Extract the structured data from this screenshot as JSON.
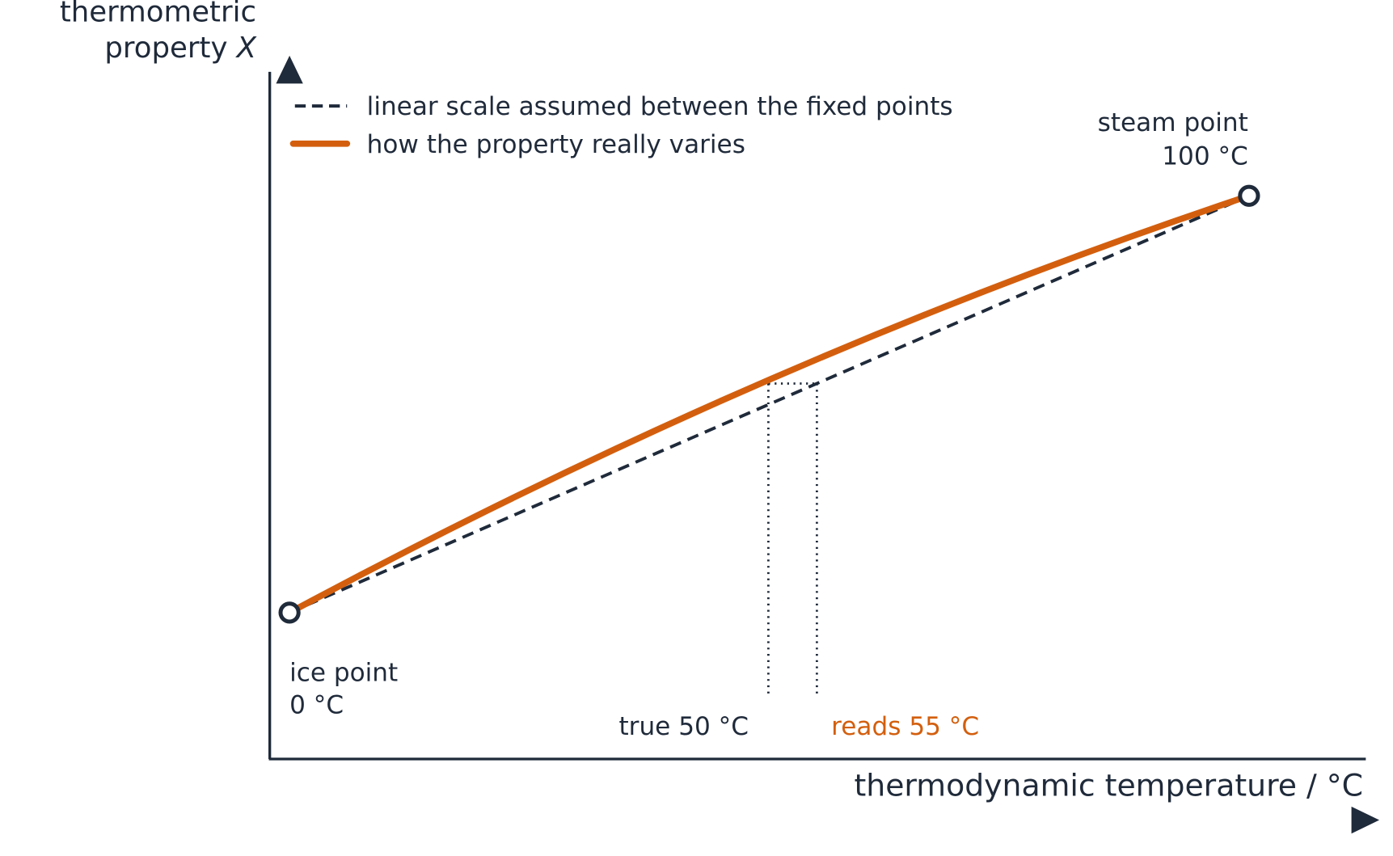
{
  "axes": {
    "y_label": {
      "line1": "thermometric",
      "line2": "property",
      "variable": "X"
    },
    "x_label": "thermodynamic temperature / °C"
  },
  "legend": [
    {
      "label": "linear scale assumed between the fixed points"
    },
    {
      "label": "how the property really varies"
    }
  ],
  "fixed_points": [
    {
      "name": "ice point",
      "temperature": "0 °C"
    },
    {
      "name": "steam point",
      "temperature": "100 °C"
    }
  ],
  "annotations": {
    "true_reading": "true 50 °C",
    "indicated_reading": "reads 55 °C"
  }
}
